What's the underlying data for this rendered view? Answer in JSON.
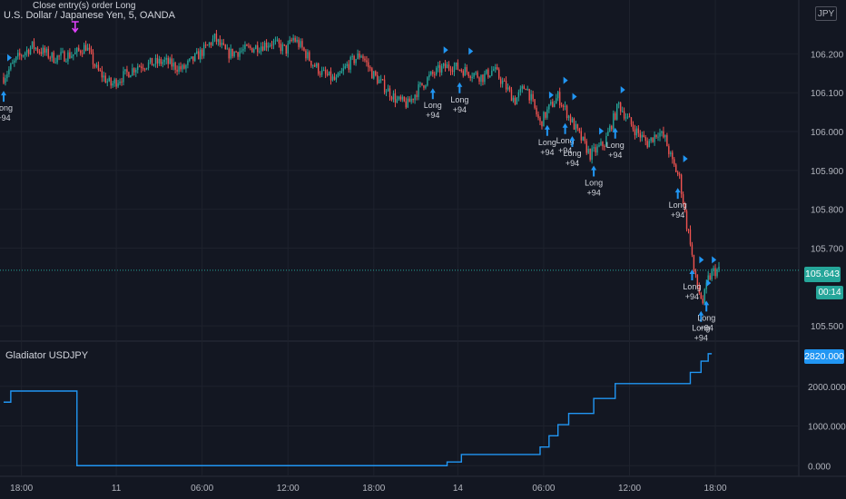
{
  "header": {
    "symbol_title": "U.S. Dollar / Japanese Yen, 5, OANDA",
    "currency_label": "JPY",
    "order_note": "Close entry(s) order Long"
  },
  "price_axis": {
    "ticks": [
      "106.200",
      "106.100",
      "106.000",
      "105.900",
      "105.800",
      "105.700",
      "105.500"
    ],
    "current_price": "105.643",
    "timer": "00:14"
  },
  "indicator": {
    "title": "Gladiator USDJPY",
    "ticks": [
      "2000.000",
      "1000.000",
      "0.000"
    ],
    "last_value": "2820.000"
  },
  "time_axis": {
    "labels": [
      "18:00",
      "11",
      "06:00",
      "12:00",
      "18:00",
      "14",
      "06:00",
      "12:00",
      "18:00"
    ]
  },
  "signals": {
    "long_label": "Long",
    "profit_label": "+94"
  },
  "colors": {
    "background": "#131722",
    "grid": "#1e222d",
    "up_candle": "#26a69a",
    "down_candle": "#ef5350",
    "signal": "#2196f3",
    "equity_line": "#2196f3",
    "exit_marker": "#e040fb"
  },
  "chart_data": [
    {
      "type": "candlestick",
      "title": "U.S. Dollar / Japanese Yen, 5, OANDA",
      "ylim": [
        105.47,
        106.32
      ],
      "x_labels": [
        "18:00",
        "11",
        "06:00",
        "12:00",
        "18:00",
        "14",
        "06:00",
        "12:00",
        "18:00"
      ],
      "price_path": {
        "x_index": [
          0,
          8,
          16,
          28,
          40,
          46,
          52,
          60,
          75,
          90,
          100,
          112,
          118,
          125,
          135,
          150,
          158,
          162,
          166,
          172,
          178,
          186,
          192,
          200,
          206,
          212,
          220,
          226,
          232,
          238,
          244,
          250,
          256,
          262,
          268,
          274,
          280,
          286,
          292,
          296,
          300,
          305,
          310,
          316,
          322,
          328,
          336,
          344,
          352,
          360,
          366,
          370,
          374,
          378,
          382,
          384,
          386,
          388,
          391,
          394,
          397,
          400
        ],
        "close": [
          106.14,
          106.19,
          106.22,
          106.19,
          106.2,
          106.22,
          106.16,
          106.12,
          106.17,
          106.18,
          106.16,
          106.21,
          106.24,
          106.2,
          106.21,
          106.23,
          106.21,
          106.24,
          106.22,
          106.18,
          106.15,
          106.13,
          106.17,
          106.2,
          106.15,
          106.12,
          106.08,
          106.07,
          106.11,
          106.14,
          106.16,
          106.17,
          106.16,
          106.15,
          106.14,
          106.16,
          106.12,
          106.08,
          106.12,
          106.07,
          106.02,
          106.06,
          106.09,
          106.04,
          105.99,
          105.94,
          105.97,
          106.07,
          106.01,
          105.97,
          106.0,
          105.98,
          105.92,
          105.88,
          105.76,
          105.72,
          105.64,
          105.6,
          105.56,
          105.62,
          105.64,
          105.643
        ]
      },
      "current_price": 105.643,
      "long_entries_x_index": [
        0,
        240,
        255,
        304,
        314,
        318,
        330,
        342,
        377,
        385,
        390,
        393
      ],
      "long_exits_x_index": [
        0,
        244,
        258,
        303,
        311,
        316,
        331,
        343,
        378,
        387,
        391,
        394
      ],
      "close_entry_marker_x_index": 40
    },
    {
      "type": "line",
      "title": "Gladiator USDJPY",
      "ylim": [
        -200,
        3000
      ],
      "x_index": [
        0,
        4,
        40,
        41,
        240,
        248,
        256,
        280,
        300,
        305,
        310,
        316,
        330,
        342,
        376,
        384,
        390,
        394,
        396
      ],
      "values": [
        1600,
        1880,
        1880,
        0,
        0,
        94,
        282,
        282,
        470,
        752,
        1034,
        1316,
        1692,
        2068,
        2068,
        2350,
        2632,
        2820,
        2820
      ],
      "last_value": 2820
    }
  ]
}
